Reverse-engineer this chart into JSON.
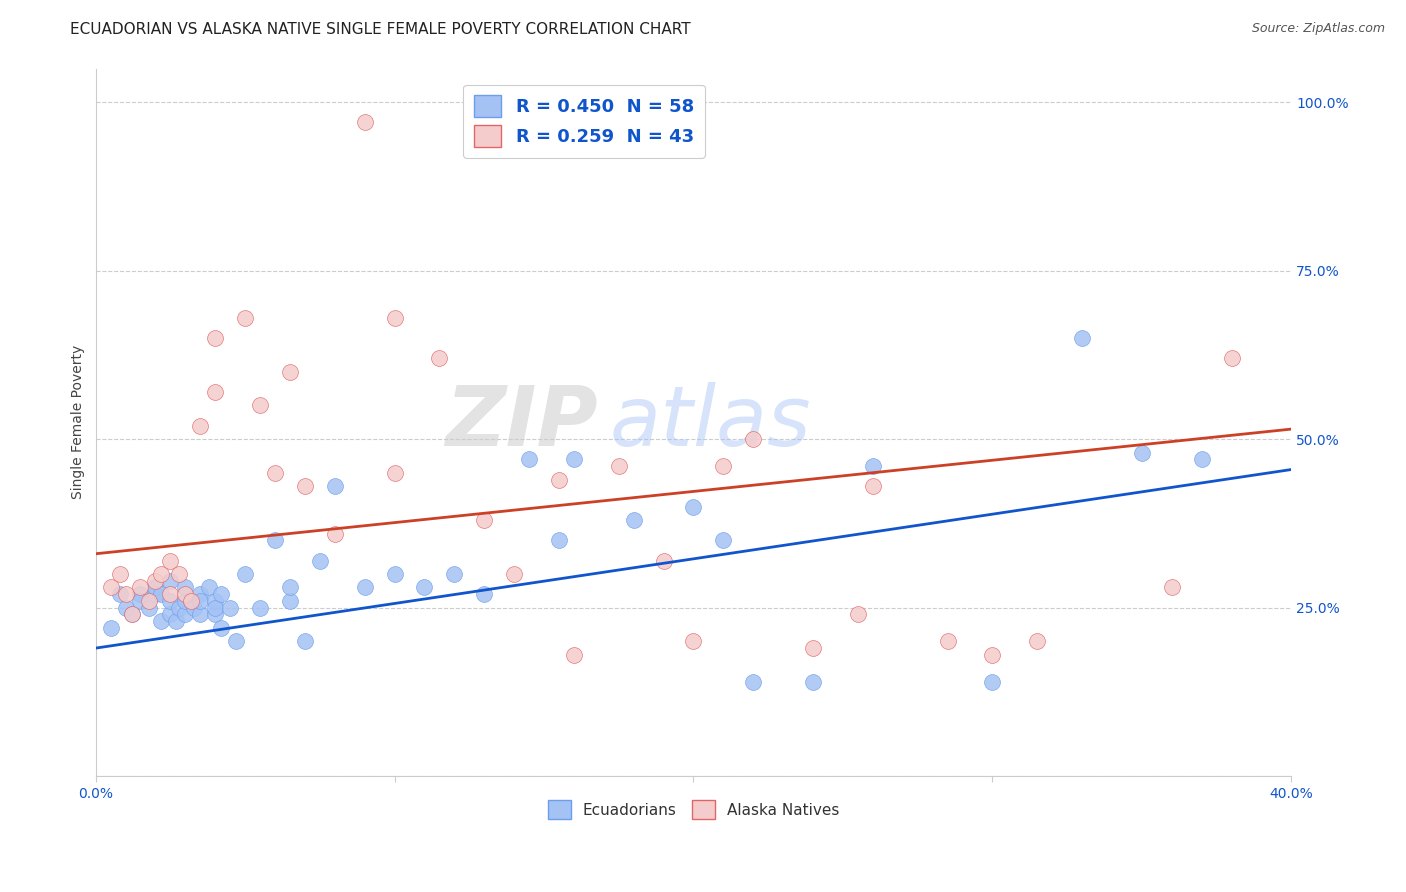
{
  "title": "ECUADORIAN VS ALASKA NATIVE SINGLE FEMALE POVERTY CORRELATION CHART",
  "source": "Source: ZipAtlas.com",
  "ylabel": "Single Female Poverty",
  "xlim": [
    0.0,
    0.4
  ],
  "ylim": [
    0.0,
    1.05
  ],
  "xticks": [
    0.0,
    0.1,
    0.2,
    0.3,
    0.4
  ],
  "xticklabels": [
    "0.0%",
    "",
    "",
    "",
    "40.0%"
  ],
  "yticks": [
    0.0,
    0.25,
    0.5,
    0.75,
    1.0
  ],
  "yticklabels": [
    "",
    "25.0%",
    "50.0%",
    "75.0%",
    "100.0%"
  ],
  "blue_R": "0.450",
  "blue_N": "58",
  "pink_R": "0.259",
  "pink_N": "43",
  "blue_color": "#a4c2f4",
  "pink_color": "#f4cccc",
  "blue_edge_color": "#6d9eeb",
  "pink_edge_color": "#e06666",
  "blue_line_color": "#1155cc",
  "pink_line_color": "#cc4125",
  "legend_label_blue": "Ecuadorians",
  "legend_label_pink": "Alaska Natives",
  "watermark": "ZIPatlas",
  "blue_line_x0": 0.0,
  "blue_line_y0": 0.19,
  "blue_line_x1": 0.4,
  "blue_line_y1": 0.455,
  "pink_line_x0": 0.0,
  "pink_line_y0": 0.33,
  "pink_line_x1": 0.4,
  "pink_line_y1": 0.515,
  "blue_scatter_x": [
    0.005,
    0.008,
    0.01,
    0.012,
    0.015,
    0.015,
    0.018,
    0.02,
    0.02,
    0.022,
    0.022,
    0.025,
    0.025,
    0.025,
    0.027,
    0.028,
    0.03,
    0.03,
    0.03,
    0.032,
    0.033,
    0.035,
    0.035,
    0.035,
    0.038,
    0.04,
    0.04,
    0.04,
    0.042,
    0.042,
    0.045,
    0.047,
    0.05,
    0.055,
    0.06,
    0.065,
    0.065,
    0.07,
    0.075,
    0.08,
    0.09,
    0.1,
    0.11,
    0.12,
    0.13,
    0.145,
    0.155,
    0.16,
    0.18,
    0.2,
    0.21,
    0.22,
    0.24,
    0.26,
    0.3,
    0.33,
    0.35,
    0.37
  ],
  "blue_scatter_y": [
    0.22,
    0.27,
    0.25,
    0.24,
    0.27,
    0.26,
    0.25,
    0.27,
    0.28,
    0.23,
    0.27,
    0.24,
    0.26,
    0.29,
    0.23,
    0.25,
    0.24,
    0.26,
    0.28,
    0.26,
    0.25,
    0.27,
    0.24,
    0.26,
    0.28,
    0.24,
    0.26,
    0.25,
    0.22,
    0.27,
    0.25,
    0.2,
    0.3,
    0.25,
    0.35,
    0.26,
    0.28,
    0.2,
    0.32,
    0.43,
    0.28,
    0.3,
    0.28,
    0.3,
    0.27,
    0.47,
    0.35,
    0.47,
    0.38,
    0.4,
    0.35,
    0.14,
    0.14,
    0.46,
    0.14,
    0.65,
    0.48,
    0.47
  ],
  "pink_scatter_x": [
    0.005,
    0.008,
    0.01,
    0.012,
    0.015,
    0.018,
    0.02,
    0.022,
    0.025,
    0.025,
    0.028,
    0.03,
    0.032,
    0.035,
    0.04,
    0.04,
    0.05,
    0.055,
    0.06,
    0.065,
    0.07,
    0.08,
    0.09,
    0.1,
    0.1,
    0.115,
    0.13,
    0.14,
    0.155,
    0.16,
    0.175,
    0.19,
    0.2,
    0.21,
    0.22,
    0.24,
    0.255,
    0.26,
    0.285,
    0.3,
    0.315,
    0.36,
    0.38
  ],
  "pink_scatter_y": [
    0.28,
    0.3,
    0.27,
    0.24,
    0.28,
    0.26,
    0.29,
    0.3,
    0.27,
    0.32,
    0.3,
    0.27,
    0.26,
    0.52,
    0.57,
    0.65,
    0.68,
    0.55,
    0.45,
    0.6,
    0.43,
    0.36,
    0.97,
    0.45,
    0.68,
    0.62,
    0.38,
    0.3,
    0.44,
    0.18,
    0.46,
    0.32,
    0.2,
    0.46,
    0.5,
    0.19,
    0.24,
    0.43,
    0.2,
    0.18,
    0.2,
    0.28,
    0.62
  ],
  "title_fontsize": 11,
  "tick_color": "#1155cc",
  "grid_color": "#cccccc",
  "axis_color": "#cccccc"
}
